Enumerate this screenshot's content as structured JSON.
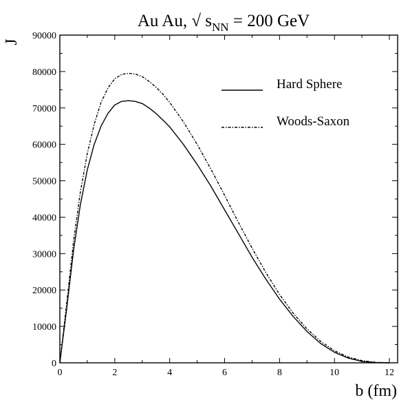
{
  "chart_data": {
    "type": "line",
    "title": {
      "prefix": "Au Au, √ s",
      "subscript": "NN",
      "suffix": " =  200 GeV"
    },
    "xlabel": "b (fm)",
    "ylabel": "J",
    "xlim": [
      0,
      12.3
    ],
    "ylim": [
      0,
      90000
    ],
    "xticks": [
      0,
      2,
      4,
      6,
      8,
      10,
      12
    ],
    "yticks": [
      0,
      10000,
      20000,
      30000,
      40000,
      50000,
      60000,
      70000,
      80000,
      90000
    ],
    "x": [
      0,
      0.25,
      0.5,
      0.75,
      1.0,
      1.25,
      1.5,
      1.75,
      2.0,
      2.25,
      2.5,
      2.75,
      3.0,
      3.25,
      3.5,
      3.75,
      4.0,
      4.5,
      5.0,
      5.5,
      6.0,
      6.5,
      7.0,
      7.5,
      8.0,
      8.5,
      9.0,
      9.5,
      10.0,
      10.5,
      11.0,
      11.5,
      12.0
    ],
    "series": [
      {
        "name": "Hard Sphere",
        "style": "solid",
        "values": [
          0,
          15000,
          31000,
          43500,
          53000,
          60000,
          65000,
          68500,
          70800,
          71800,
          72000,
          71800,
          71200,
          70000,
          68500,
          66700,
          64800,
          60000,
          54500,
          48500,
          42000,
          35500,
          29000,
          23000,
          17500,
          12700,
          8600,
          5300,
          2900,
          1300,
          400,
          60,
          0
        ]
      },
      {
        "name": "Woods-Saxon",
        "style": "dashdot",
        "values": [
          0,
          16500,
          33500,
          47000,
          57500,
          65500,
          71500,
          75500,
          78000,
          79200,
          79500,
          79300,
          78600,
          77300,
          75700,
          73800,
          71500,
          66200,
          60000,
          53200,
          46000,
          38600,
          31500,
          24800,
          18800,
          13600,
          9300,
          5900,
          3300,
          1600,
          600,
          150,
          20
        ]
      }
    ],
    "legend": {
      "position": "top-right"
    },
    "grid": false
  }
}
